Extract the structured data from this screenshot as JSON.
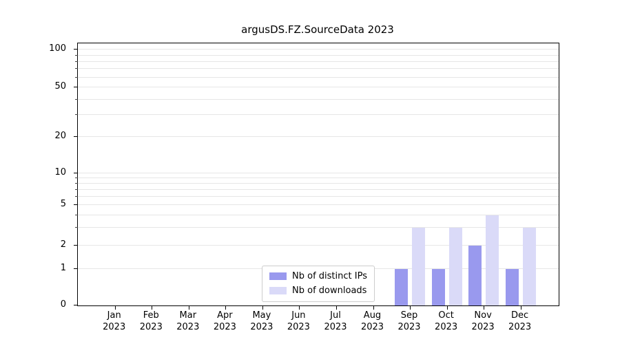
{
  "chart_data": {
    "type": "bar",
    "title": "argusDS.FZ.SourceData 2023",
    "yscale": "symlog",
    "yticks": [
      0,
      1,
      2,
      5,
      10,
      20,
      50,
      100
    ],
    "grid": "horizontal, major and minor log gridlines",
    "grid_values": [
      1,
      2,
      3,
      4,
      5,
      6,
      7,
      8,
      9,
      10,
      20,
      30,
      40,
      50,
      60,
      70,
      80,
      90,
      100
    ],
    "legend_position": "lower center",
    "categories": [
      {
        "month": "Jan",
        "year": "2023"
      },
      {
        "month": "Feb",
        "year": "2023"
      },
      {
        "month": "Mar",
        "year": "2023"
      },
      {
        "month": "Apr",
        "year": "2023"
      },
      {
        "month": "May",
        "year": "2023"
      },
      {
        "month": "Jun",
        "year": "2023"
      },
      {
        "month": "Jul",
        "year": "2023"
      },
      {
        "month": "Aug",
        "year": "2023"
      },
      {
        "month": "Sep",
        "year": "2023"
      },
      {
        "month": "Oct",
        "year": "2023"
      },
      {
        "month": "Nov",
        "year": "2023"
      },
      {
        "month": "Dec",
        "year": "2023"
      }
    ],
    "series": [
      {
        "name": "Nb of distinct IPs",
        "color": "#9999ee",
        "values": [
          0,
          0,
          0,
          0,
          0,
          0,
          0,
          0,
          1,
          1,
          2,
          1
        ]
      },
      {
        "name": "Nb of downloads",
        "color": "#dadaf8",
        "values": [
          0,
          0,
          0,
          0,
          0,
          0,
          0,
          0,
          3,
          3,
          4,
          3
        ]
      }
    ]
  }
}
